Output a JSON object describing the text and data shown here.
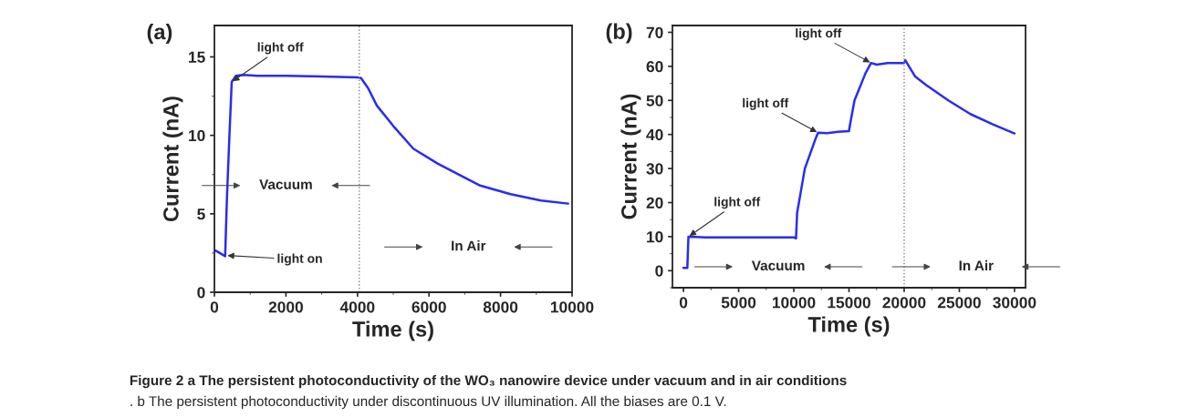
{
  "chart_data": [
    {
      "type": "line",
      "title": "(a)",
      "xlabel": "Time (s)",
      "ylabel": "Current (nA)",
      "xlim": [
        0,
        10000
      ],
      "ylim": [
        0,
        17
      ],
      "xticks": [
        0,
        2000,
        4000,
        6000,
        8000,
        10000
      ],
      "yticks": [
        0,
        5,
        10,
        15
      ],
      "series": [
        {
          "color": "#2b2bf0",
          "x": [
            0,
            150,
            300,
            350,
            420,
            484,
            600,
            800,
            1200,
            2000,
            3000,
            4000,
            4100,
            4300,
            4540,
            5000,
            5560,
            6240,
            7000,
            7430,
            8280,
            9130,
            9890
          ],
          "values": [
            2.7,
            2.5,
            2.3,
            6,
            10,
            13.4,
            13.8,
            13.85,
            13.8,
            13.8,
            13.75,
            13.7,
            13.65,
            13.0,
            11.9,
            10.6,
            9.15,
            8.2,
            7.3,
            6.8,
            6.25,
            5.85,
            5.65
          ]
        }
      ],
      "ref_lines": [
        {
          "axis": "x",
          "value": 4050,
          "color": "#808080",
          "line_style": "dotted"
        }
      ],
      "annotations": [
        {
          "text": "light off",
          "x": 484,
          "y": 13.4
        },
        {
          "text": "light on",
          "x": 330,
          "y": 2.35
        },
        "Vacuum",
        "In Air",
        "Figure 2 a The persistent photoconductivity of the WO₃ nanowire device under vacuum and in air conditions",
        ". b The persistent photoconductivity under discontinuous UV illumination. All the biases are 0.1 V."
      ]
    },
    {
      "type": "line",
      "title": "(b)",
      "xlabel": "Time (s)",
      "ylabel": "Current (nA)",
      "xlim": [
        -1000,
        31000
      ],
      "ylim": [
        -5,
        72
      ],
      "xticks": [
        0,
        5000,
        10000,
        15000,
        20000,
        25000,
        30000
      ],
      "yticks": [
        0,
        10,
        20,
        30,
        40,
        50,
        60,
        70
      ],
      "series": [
        {
          "color": "#2b2bf0",
          "x": [
            0,
            350,
            450,
            2000,
            6000,
            10000,
            10200,
            10300,
            11000,
            12000,
            12200,
            13000,
            14000,
            15000,
            15100,
            15500,
            16500,
            17000,
            17500,
            18500,
            20000,
            20100,
            21000,
            22000,
            24000,
            26000,
            28000,
            30000
          ],
          "values": [
            0.8,
            0.8,
            10,
            9.8,
            9.8,
            9.8,
            9.5,
            17,
            30,
            39,
            40.5,
            40.4,
            40.8,
            41,
            43,
            50,
            58,
            61,
            60.5,
            61,
            61,
            61.8,
            57,
            54.5,
            50,
            46,
            43,
            40.3
          ]
        }
      ],
      "ref_lines": [
        {
          "axis": "x",
          "value": 20000,
          "color": "#808080",
          "line_style": "dotted"
        }
      ],
      "annotations": [
        {
          "text": "light off",
          "x": 450,
          "y": 10
        },
        {
          "text": "light off",
          "x": 12200,
          "y": 40.5
        },
        {
          "text": "light off",
          "x": 17000,
          "y": 61
        },
        "Vacuum",
        "In Air"
      ]
    }
  ]
}
